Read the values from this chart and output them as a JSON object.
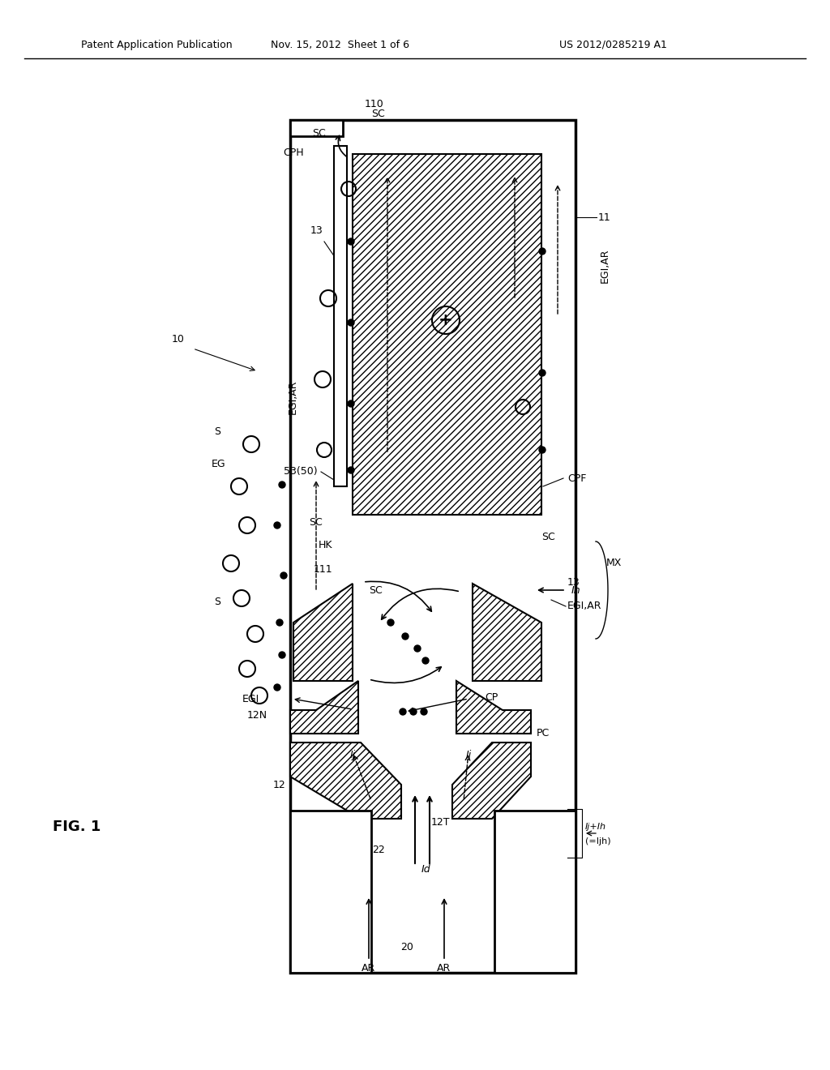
{
  "title_left": "Patent Application Publication",
  "title_mid": "Nov. 15, 2012  Sheet 1 of 6",
  "title_right": "US 2012/0285219 A1",
  "fig_label": "FIG. 1",
  "bg_color": "#ffffff",
  "line_color": "#000000",
  "label_fontsize": 9,
  "header_fontsize": 9
}
